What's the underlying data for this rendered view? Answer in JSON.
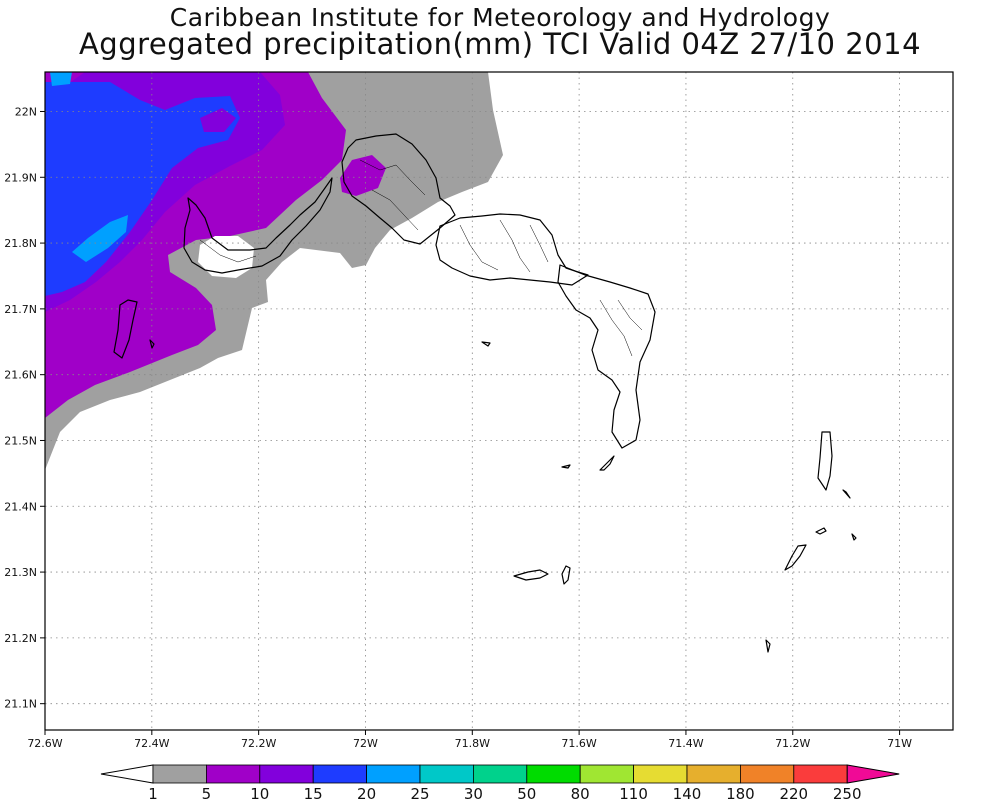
{
  "title": {
    "line1": "Caribbean Institute for Meteorology and Hydrology",
    "line2": "Aggregated precipitation(mm) TCI Valid 04Z 27/10 2014"
  },
  "map": {
    "region": "Turks and Caicos Islands",
    "lon_range": [
      -72.6,
      -70.9
    ],
    "lat_range": [
      21.06,
      22.06
    ],
    "grid": "dotted",
    "x_ticks": [
      {
        "value": -72.6,
        "label": "72.6W"
      },
      {
        "value": -72.4,
        "label": "72.4W"
      },
      {
        "value": -72.2,
        "label": "72.2W"
      },
      {
        "value": -72.0,
        "label": "72W"
      },
      {
        "value": -71.8,
        "label": "71.8W"
      },
      {
        "value": -71.6,
        "label": "71.6W"
      },
      {
        "value": -71.4,
        "label": "71.4W"
      },
      {
        "value": -71.2,
        "label": "71.2W"
      },
      {
        "value": -71.0,
        "label": "71W"
      }
    ],
    "y_ticks": [
      {
        "value": 22.0,
        "label": "22N"
      },
      {
        "value": 21.9,
        "label": "21.9N"
      },
      {
        "value": 21.8,
        "label": "21.8N"
      },
      {
        "value": 21.7,
        "label": "21.7N"
      },
      {
        "value": 21.6,
        "label": "21.6N"
      },
      {
        "value": 21.5,
        "label": "21.5N"
      },
      {
        "value": 21.4,
        "label": "21.4N"
      },
      {
        "value": 21.3,
        "label": "21.3N"
      },
      {
        "value": 21.2,
        "label": "21.2N"
      },
      {
        "value": 21.1,
        "label": "21.1N"
      }
    ]
  },
  "colorbar": {
    "levels": [
      "1",
      "5",
      "10",
      "15",
      "20",
      "25",
      "30",
      "50",
      "80",
      "110",
      "140",
      "180",
      "220",
      "250"
    ],
    "under_color": "#ffffff",
    "over_color": "#f00a96",
    "colors": [
      "#a0a0a0",
      "#a000c8",
      "#8200dc",
      "#1e3cff",
      "#00a0ff",
      "#00c8c8",
      "#00d28c",
      "#00dc00",
      "#a0e632",
      "#e6dc32",
      "#e6af2d",
      "#f08228",
      "#fa3c3c"
    ]
  },
  "colors": {
    "precip_1_5": "#a0a0a0",
    "precip_5_10": "#a000c8",
    "precip_10_15": "#8200dc",
    "precip_15_20": "#1e3cff",
    "precip_20_25": "#00a0ff"
  }
}
